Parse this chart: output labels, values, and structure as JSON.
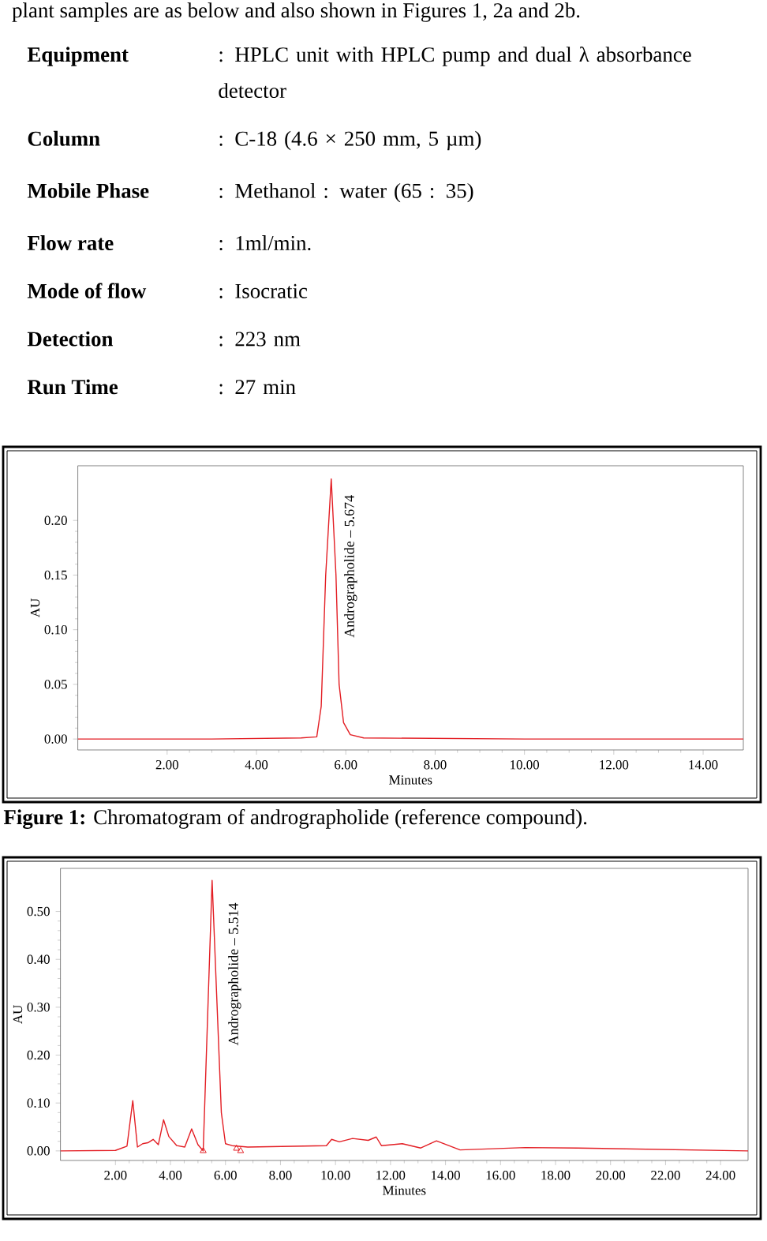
{
  "chart_data": [
    {
      "type": "other",
      "annotations": [
        "plant samples are as below and also shown in Figures 1, 2a and 2b.",
        "Equipment",
        ": HPLC unit with HPLC pump and dual λ absorbance detector",
        "Column",
        ": C-18 (4.6 × 250 mm, 5 µm)",
        "Mobile Phase",
        ": Methanol : water (65 : 35)",
        "Flow rate",
        ": 1ml/min.",
        "Mode of flow",
        ": Isocratic",
        "Detection",
        ": 223 nm",
        "Run Time",
        ": 27 min"
      ]
    },
    {
      "type": "line",
      "xlabel": "Minutes",
      "ylabel": "AU",
      "xlim": [
        0,
        14.9
      ],
      "ylim": [
        -0.01,
        0.25
      ],
      "xticks": [
        {
          "value": 2,
          "label": "2.00"
        },
        {
          "value": 4,
          "label": "4.00"
        },
        {
          "value": 6,
          "label": "6.00"
        },
        {
          "value": 8,
          "label": "8.00"
        },
        {
          "value": 10,
          "label": "10.00"
        },
        {
          "value": 12,
          "label": "12.00"
        },
        {
          "value": 14,
          "label": "14.00"
        }
      ],
      "yticks": [
        {
          "value": 0,
          "label": "0.00"
        },
        {
          "value": 0.05,
          "label": "0.05"
        },
        {
          "value": 0.1,
          "label": "0.10"
        },
        {
          "value": 0.15,
          "label": "0.15"
        },
        {
          "value": 0.2,
          "label": "0.20"
        }
      ],
      "series": [
        {
          "type": "line",
          "color": "#e31e24",
          "x": [
            0,
            3.0,
            5.0,
            5.35,
            5.45,
            5.55,
            5.674,
            5.78,
            5.85,
            5.95,
            6.1,
            6.4,
            10.0,
            14.9
          ],
          "values": [
            0,
            0,
            0.001,
            0.002,
            0.03,
            0.15,
            0.238,
            0.15,
            0.05,
            0.015,
            0.004,
            0.001,
            0,
            0
          ]
        }
      ],
      "annotations": [
        {
          "text": "Andrographolide – 5.674",
          "x": 5.674,
          "y": 0.238
        },
        "**Figure 1:** Chromatogram of andrographolide (reference compound)."
      ]
    },
    {
      "type": "line",
      "xlabel": "Minutes",
      "ylabel": "AU",
      "xlim": [
        0,
        25
      ],
      "ylim": [
        -0.02,
        0.59
      ],
      "xticks": [
        {
          "value": 2,
          "label": "2.00"
        },
        {
          "value": 4,
          "label": "4.00"
        },
        {
          "value": 6,
          "label": "6.00"
        },
        {
          "value": 8,
          "label": "8.00"
        },
        {
          "value": 10,
          "label": "10.00"
        },
        {
          "value": 12,
          "label": "12.00"
        },
        {
          "value": 14,
          "label": "14.00"
        },
        {
          "value": 16,
          "label": "16.00"
        },
        {
          "value": 18,
          "label": "18.00"
        },
        {
          "value": 20,
          "label": "20.00"
        },
        {
          "value": 22,
          "label": "22.00"
        },
        {
          "value": 24,
          "label": "24.00"
        }
      ],
      "yticks": [
        {
          "value": 0,
          "label": "0.00"
        },
        {
          "value": 0.1,
          "label": "0.10"
        },
        {
          "value": 0.2,
          "label": "0.20"
        },
        {
          "value": 0.3,
          "label": "0.30"
        },
        {
          "value": 0.4,
          "label": "0.40"
        },
        {
          "value": 0.5,
          "label": "0.50"
        }
      ],
      "series": [
        {
          "type": "line",
          "color": "#e31e24",
          "x": [
            0,
            2.0,
            2.42,
            2.63,
            2.8,
            2.99,
            3.18,
            3.37,
            3.56,
            3.75,
            3.94,
            4.23,
            4.52,
            4.77,
            5.0,
            5.19,
            5.514,
            5.85,
            6.0,
            6.24,
            6.81,
            9.67,
            9.86,
            10.14,
            10.62,
            11.19,
            11.48,
            11.67,
            12.43,
            13.1,
            13.67,
            14.53,
            16.9,
            18.8,
            25
          ],
          "values": [
            0,
            0.001,
            0.01,
            0.105,
            0.008,
            0.015,
            0.017,
            0.024,
            0.013,
            0.065,
            0.03,
            0.011,
            0.008,
            0.046,
            0.013,
            0.0,
            0.565,
            0.08,
            0.015,
            0.011,
            0.008,
            0.011,
            0.024,
            0.019,
            0.026,
            0.022,
            0.029,
            0.011,
            0.015,
            0.006,
            0.021,
            0.002,
            0.007,
            0.006,
            0.0
          ]
        },
        {
          "type": "scatter",
          "marker": "triangle",
          "color": "#e31e24",
          "x": [
            5.19,
            6.4,
            6.55
          ],
          "values": [
            0.0,
            0.005,
            0.0
          ]
        }
      ],
      "annotations": [
        {
          "text": "Andrographolide – 5.514",
          "x": 5.514,
          "y": 0.565
        }
      ]
    }
  ]
}
